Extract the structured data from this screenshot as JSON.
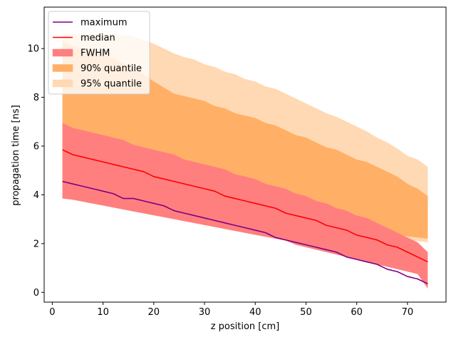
{
  "chart_data": {
    "type": "area",
    "xlabel": "z position [cm]",
    "ylabel": "propagation time [ns]",
    "xlim": [
      -1.6,
      77.6
    ],
    "ylim": [
      -0.4,
      11.7
    ],
    "xticks": [
      0,
      10,
      20,
      30,
      40,
      50,
      60,
      70
    ],
    "yticks": [
      0,
      2,
      4,
      6,
      8,
      10
    ],
    "grid": false,
    "legend_position": "upper-left",
    "x": [
      2,
      4,
      6,
      8,
      10,
      12,
      14,
      16,
      18,
      20,
      22,
      24,
      26,
      28,
      30,
      32,
      34,
      36,
      38,
      40,
      42,
      44,
      46,
      48,
      50,
      52,
      54,
      56,
      58,
      60,
      62,
      64,
      66,
      68,
      70,
      72,
      74
    ],
    "bands": [
      {
        "name": "95% quantile",
        "color": "#ffd9b3",
        "lower": [
          3.85,
          3.8,
          3.75,
          3.7,
          3.65,
          3.6,
          3.55,
          3.5,
          3.45,
          3.4,
          3.35,
          3.3,
          3.25,
          3.2,
          3.15,
          3.1,
          3.05,
          3.0,
          2.95,
          2.9,
          2.85,
          2.8,
          2.75,
          2.7,
          2.65,
          2.6,
          2.55,
          2.5,
          2.45,
          2.4,
          2.35,
          2.3,
          2.25,
          2.2,
          2.15,
          2.1,
          2.05
        ],
        "upper": [
          10.6,
          10.6,
          10.6,
          10.6,
          10.6,
          10.6,
          10.55,
          10.5,
          10.35,
          10.2,
          10.0,
          9.8,
          9.65,
          9.55,
          9.35,
          9.25,
          9.05,
          8.95,
          8.75,
          8.65,
          8.45,
          8.35,
          8.15,
          7.95,
          7.75,
          7.55,
          7.35,
          7.2,
          7.0,
          6.8,
          6.6,
          6.35,
          6.15,
          5.9,
          5.6,
          5.45,
          5.15
        ]
      },
      {
        "name": "90% quantile",
        "color": "#ffb066",
        "lower": [
          4.0,
          3.95,
          3.9,
          3.85,
          3.8,
          3.75,
          3.7,
          3.65,
          3.6,
          3.55,
          3.5,
          3.45,
          3.4,
          3.35,
          3.3,
          3.25,
          3.2,
          3.15,
          3.1,
          3.05,
          3.0,
          2.95,
          2.9,
          2.85,
          2.8,
          2.75,
          2.7,
          2.65,
          2.6,
          2.55,
          2.5,
          2.45,
          2.4,
          2.35,
          2.3,
          2.25,
          2.2
        ],
        "upper": [
          10.3,
          10.1,
          10.0,
          9.9,
          9.75,
          9.6,
          9.4,
          9.2,
          8.95,
          8.65,
          8.4,
          8.15,
          8.05,
          7.95,
          7.85,
          7.65,
          7.55,
          7.35,
          7.25,
          7.15,
          6.95,
          6.85,
          6.65,
          6.45,
          6.35,
          6.15,
          5.95,
          5.85,
          5.65,
          5.45,
          5.35,
          5.15,
          4.95,
          4.75,
          4.45,
          4.25,
          3.95
        ]
      },
      {
        "name": "FWHM",
        "color": "#ff7f7f",
        "lower": [
          3.85,
          3.8,
          3.72,
          3.64,
          3.56,
          3.48,
          3.4,
          3.32,
          3.24,
          3.16,
          3.08,
          3.0,
          2.92,
          2.84,
          2.76,
          2.68,
          2.6,
          2.52,
          2.44,
          2.36,
          2.28,
          2.2,
          2.12,
          1.95,
          1.85,
          1.75,
          1.65,
          1.55,
          1.45,
          1.35,
          1.25,
          1.15,
          1.05,
          0.95,
          0.85,
          0.75,
          0.15
        ],
        "upper": [
          6.95,
          6.75,
          6.65,
          6.55,
          6.45,
          6.35,
          6.25,
          6.05,
          5.95,
          5.85,
          5.75,
          5.65,
          5.45,
          5.35,
          5.25,
          5.15,
          5.05,
          4.85,
          4.75,
          4.65,
          4.45,
          4.35,
          4.25,
          4.05,
          3.95,
          3.75,
          3.65,
          3.45,
          3.35,
          3.15,
          3.05,
          2.85,
          2.65,
          2.45,
          2.25,
          2.05,
          1.65
        ]
      }
    ],
    "series": [
      {
        "name": "maximum",
        "color": "#800080",
        "values": [
          4.55,
          4.45,
          4.35,
          4.25,
          4.15,
          4.05,
          3.85,
          3.85,
          3.75,
          3.65,
          3.55,
          3.35,
          3.25,
          3.15,
          3.05,
          2.95,
          2.85,
          2.75,
          2.65,
          2.55,
          2.45,
          2.25,
          2.15,
          2.05,
          1.95,
          1.85,
          1.75,
          1.65,
          1.45,
          1.35,
          1.25,
          1.15,
          0.95,
          0.85,
          0.65,
          0.55,
          0.35
        ]
      },
      {
        "name": "median",
        "color": "#ff0000",
        "values": [
          5.85,
          5.65,
          5.55,
          5.45,
          5.35,
          5.25,
          5.15,
          5.05,
          4.95,
          4.75,
          4.65,
          4.55,
          4.45,
          4.35,
          4.25,
          4.15,
          3.95,
          3.85,
          3.75,
          3.65,
          3.55,
          3.45,
          3.25,
          3.15,
          3.05,
          2.95,
          2.75,
          2.65,
          2.55,
          2.35,
          2.25,
          2.15,
          1.95,
          1.85,
          1.65,
          1.45,
          1.25
        ]
      }
    ],
    "legend": [
      {
        "label": "maximum",
        "kind": "line",
        "color": "#800080"
      },
      {
        "label": "median",
        "kind": "line",
        "color": "#ff0000"
      },
      {
        "label": "FWHM",
        "kind": "patch",
        "color": "#ff7f7f"
      },
      {
        "label": "90% quantile",
        "kind": "patch",
        "color": "#ffb066"
      },
      {
        "label": "95% quantile",
        "kind": "patch",
        "color": "#ffd9b3"
      }
    ]
  }
}
